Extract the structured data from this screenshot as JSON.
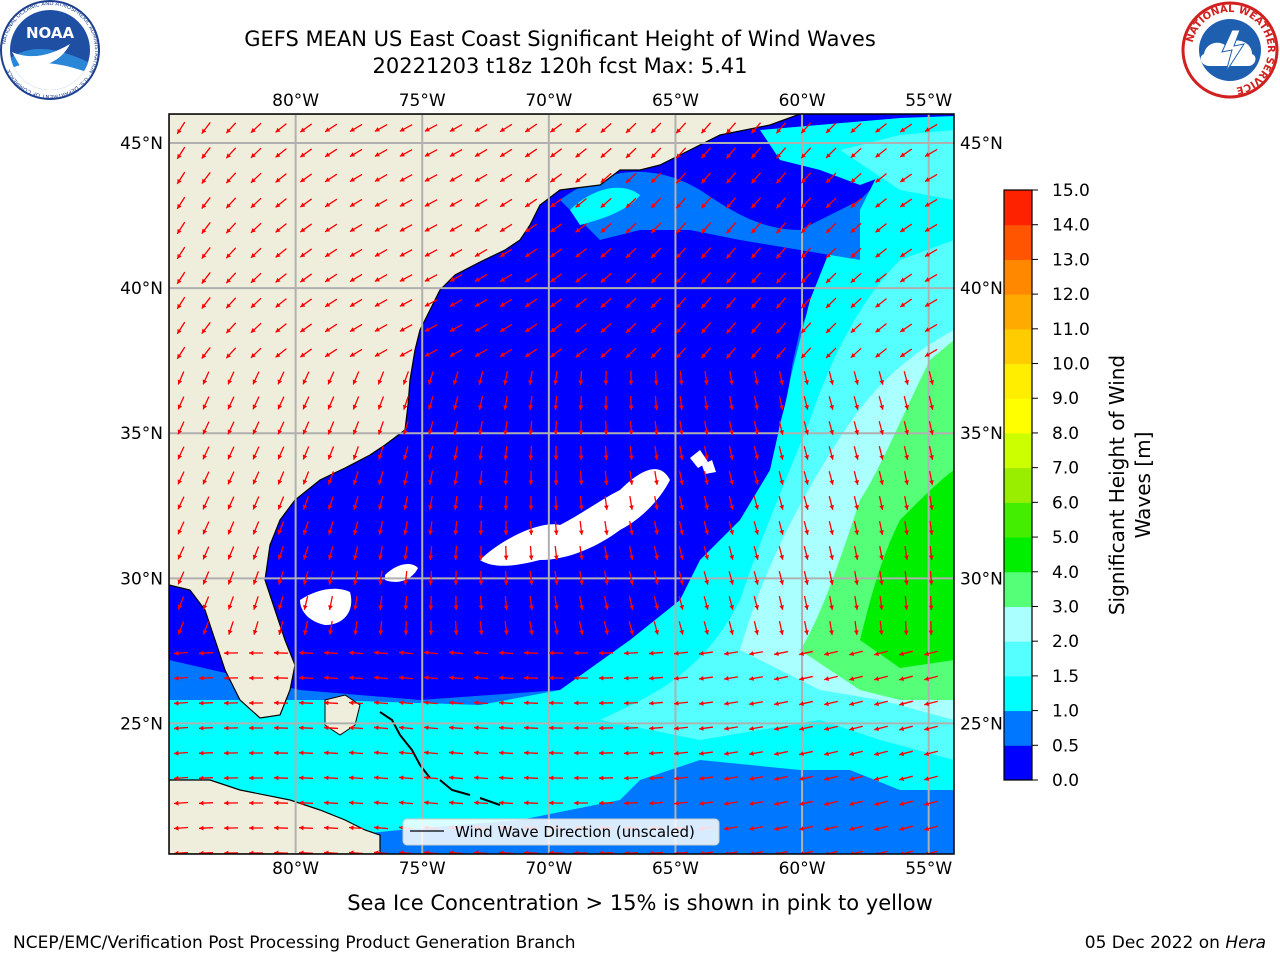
{
  "title": {
    "line1": "GEFS MEAN US East Coast Significant Height of Wind Waves",
    "line2": "20221203 t18z 120h fcst   Max: 5.41"
  },
  "logos": {
    "left": {
      "name": "NOAA",
      "ring_text": "NATIONAL OCEANIC AND ATMOSPHERIC ADMINISTRATION · U.S. DEPARTMENT OF COMMERCE"
    },
    "right": {
      "name": "NATIONAL WEATHER SERVICE"
    }
  },
  "map": {
    "lon_range": [
      -85,
      -54
    ],
    "lat_range": [
      20.5,
      46
    ],
    "lon_ticks": [
      "80°W",
      "75°W",
      "70°W",
      "65°W",
      "60°W",
      "55°W"
    ],
    "lat_ticks": [
      "45°N",
      "40°N",
      "35°N",
      "30°N",
      "25°N"
    ],
    "grid": true,
    "land_color": "#efeedc",
    "missing_color": "#ffffff",
    "arrow_color": "#ff0000",
    "legend_label": "Wind Wave Direction (unscaled)",
    "legend_position": "bottom-center"
  },
  "colorbar": {
    "label": "Significant Height of Wind Waves [m]",
    "label_line1": "Significant Height of Wind",
    "label_line2": "Waves [m]",
    "ticks": [
      "0.0",
      "0.5",
      "1.0",
      "1.5",
      "2.0",
      "3.0",
      "4.0",
      "5.0",
      "6.0",
      "7.0",
      "8.0",
      "9.0",
      "10.0",
      "11.0",
      "12.0",
      "13.0",
      "14.0",
      "15.0"
    ],
    "colors": [
      "#0000ff",
      "#0077ff",
      "#00ffff",
      "#55ffff",
      "#aaffff",
      "#55ff77",
      "#00ee00",
      "#44ee00",
      "#99ee00",
      "#ccff00",
      "#ffff00",
      "#ffee00",
      "#ffcc00",
      "#ffaa00",
      "#ff8800",
      "#ff5500",
      "#ff2200"
    ]
  },
  "ice_note": "Sea Ice Concentration > 15% is shown in pink to yellow",
  "footer": {
    "left": "NCEP/EMC/Verification Post Processing Product Generation Branch",
    "right_date": "05 Dec 2022 on ",
    "right_machine": "Hera"
  }
}
